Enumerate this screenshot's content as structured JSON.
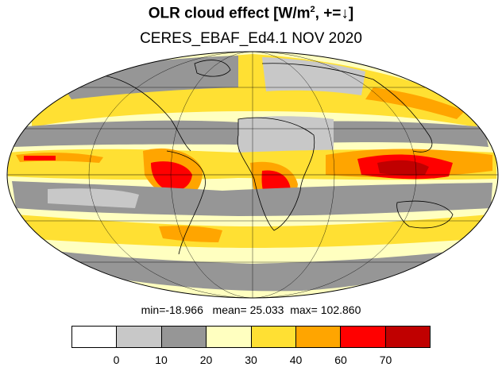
{
  "title": {
    "prefix": "OLR cloud effect [W/m",
    "sup": "2",
    "suffix": ", +=↓]"
  },
  "subtitle": "CERES_EBAF_Ed4.1 NOV 2020",
  "stats": {
    "min_label": "min=",
    "min": "-18.966",
    "mean_label": "mean=",
    "mean": "25.033",
    "max_label": "max=",
    "max": "102.860"
  },
  "colorbar": {
    "colors": [
      "#ffffff",
      "#c8c8c8",
      "#969696",
      "#ffffc0",
      "#ffe033",
      "#ffa500",
      "#ff0000",
      "#c00000"
    ],
    "ticks": [
      "0",
      "10",
      "20",
      "30",
      "40",
      "60",
      "70"
    ]
  },
  "map": {
    "projection": "mollweide",
    "field": "OLR cloud effect",
    "units": "W/m2"
  }
}
